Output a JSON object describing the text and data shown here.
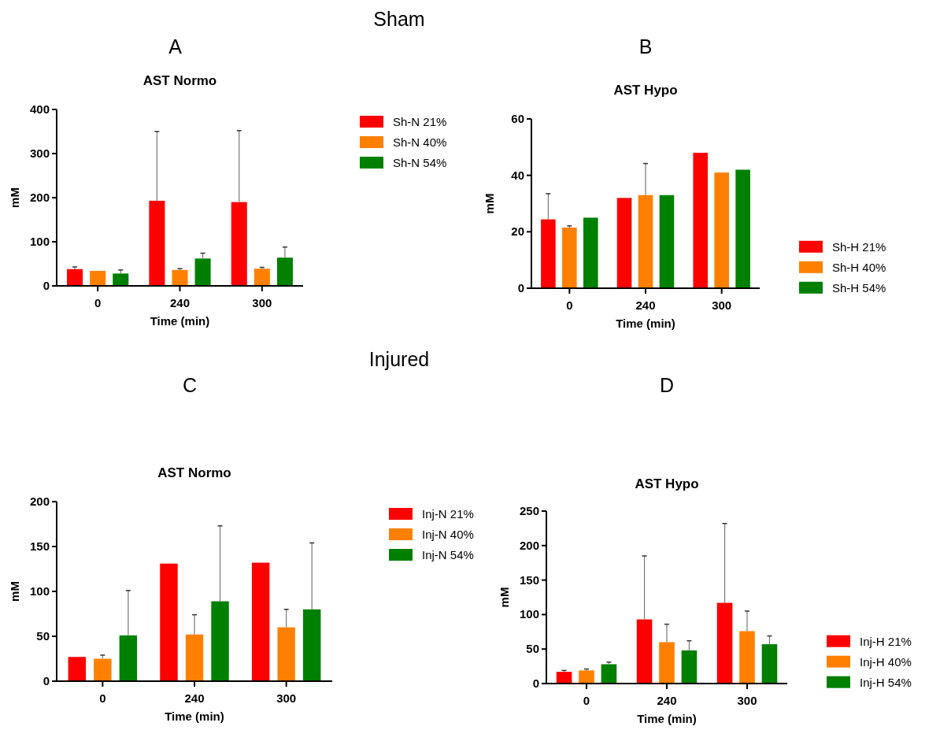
{
  "chart_data": [
    {
      "type": "bar",
      "title": "AST Normo",
      "subtitle": "A",
      "annotations": [
        "Sham"
      ],
      "xlabel": "Time (min)",
      "ylabel": "mM",
      "categories": [
        "0",
        "240",
        "300"
      ],
      "ylim": [
        0,
        400
      ],
      "yticks": [
        0,
        100,
        200,
        300,
        400
      ],
      "legend": "top right",
      "series": [
        {
          "name": "Sh-N 21%",
          "color": "#ff0000",
          "values": [
            38,
            193,
            190
          ],
          "errors": [
            [
              38,
              43
            ],
            [
              193,
              350
            ],
            [
              190,
              352
            ]
          ]
        },
        {
          "name": "Sh-N 40%",
          "color": "#ff8000",
          "values": [
            34,
            36,
            39
          ],
          "errors": [
            null,
            [
              36,
              39
            ],
            [
              39,
              42
            ]
          ]
        },
        {
          "name": "Sh-N 54%",
          "color": "#008000",
          "values": [
            28,
            62,
            64
          ],
          "errors": [
            [
              28,
              36
            ],
            [
              62,
              74
            ],
            [
              64,
              88
            ]
          ]
        }
      ]
    },
    {
      "type": "bar",
      "title": "AST Hypo",
      "subtitle": "B",
      "xlabel": "Time (min)",
      "ylabel": "mM",
      "categories": [
        "0",
        "240",
        "300"
      ],
      "ylim": [
        0,
        60
      ],
      "yticks": [
        0,
        20,
        40,
        60
      ],
      "legend": "bottom right",
      "series": [
        {
          "name": "Sh-H 21%",
          "color": "#ff0000",
          "values": [
            24.4,
            32,
            48
          ],
          "errors": [
            [
              24.4,
              33.5
            ],
            null,
            null
          ]
        },
        {
          "name": "Sh-H 40%",
          "color": "#ff8000",
          "values": [
            21.5,
            33,
            41
          ],
          "errors": [
            [
              21.5,
              22.1
            ],
            [
              33,
              44.2
            ],
            null
          ]
        },
        {
          "name": "Sh-H 54%",
          "color": "#008000",
          "values": [
            25,
            33,
            42
          ],
          "errors": [
            null,
            null,
            null
          ]
        }
      ]
    },
    {
      "type": "bar",
      "title": "AST Normo",
      "subtitle": "C",
      "annotations": [
        "Injured"
      ],
      "xlabel": "Time (min)",
      "ylabel": "mM",
      "categories": [
        "0",
        "240",
        "300"
      ],
      "ylim": [
        0,
        200
      ],
      "yticks": [
        0,
        50,
        100,
        150,
        200
      ],
      "legend": "top right",
      "series": [
        {
          "name": "Inj-N 21%",
          "color": "#ff0000",
          "values": [
            27,
            131,
            132
          ],
          "errors": [
            null,
            null,
            null
          ]
        },
        {
          "name": "Inj-N 40%",
          "color": "#ff8000",
          "values": [
            25,
            52,
            60
          ],
          "errors": [
            [
              25,
              29
            ],
            [
              52,
              74
            ],
            [
              60,
              80
            ]
          ]
        },
        {
          "name": "Inj-N 54%",
          "color": "#008000",
          "values": [
            51,
            89,
            80
          ],
          "errors": [
            [
              51,
              101
            ],
            [
              89,
              173
            ],
            [
              80,
              154
            ]
          ]
        }
      ]
    },
    {
      "type": "bar",
      "title": "AST Hypo",
      "subtitle": "D",
      "xlabel": "Time (min)",
      "ylabel": "mM",
      "categories": [
        "0",
        "240",
        "300"
      ],
      "ylim": [
        0,
        250
      ],
      "yticks": [
        0,
        50,
        100,
        150,
        200,
        250
      ],
      "legend": "bottom right",
      "series": [
        {
          "name": "Inj-H 21%",
          "color": "#ff0000",
          "values": [
            17,
            93,
            117
          ],
          "errors": [
            [
              17,
              19
            ],
            [
              93,
              185
            ],
            [
              117,
              232
            ]
          ]
        },
        {
          "name": "Inj-H 40%",
          "color": "#ff8000",
          "values": [
            19,
            60,
            76
          ],
          "errors": [
            [
              19,
              21
            ],
            [
              60,
              86
            ],
            [
              76,
              105
            ]
          ]
        },
        {
          "name": "Inj-H 54%",
          "color": "#008000",
          "values": [
            28,
            48,
            57
          ],
          "errors": [
            [
              28,
              31
            ],
            [
              48,
              62
            ],
            [
              57,
              69
            ]
          ]
        }
      ]
    }
  ]
}
